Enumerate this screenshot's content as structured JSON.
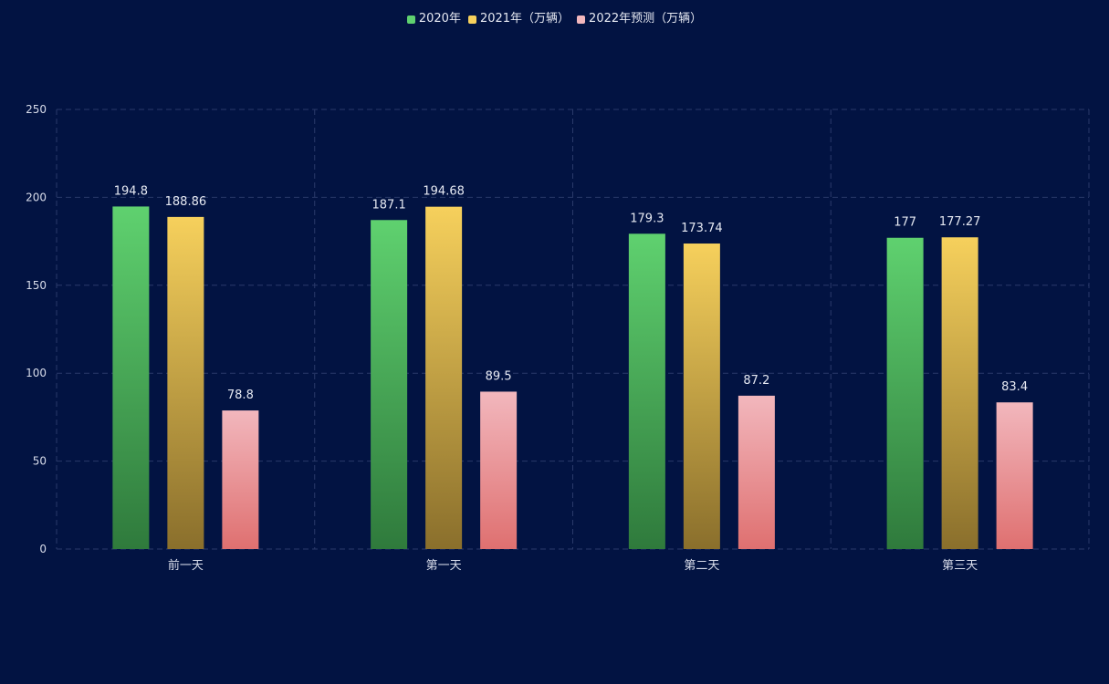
{
  "chart_data": {
    "type": "bar",
    "title": "",
    "xlabel": "",
    "ylabel": "",
    "ylim": [
      0,
      250
    ],
    "yticks": [
      0,
      50,
      100,
      150,
      200,
      250
    ],
    "grid": true,
    "legend_position": "top-center",
    "categories": [
      "前一天",
      "第一天",
      "第二天",
      "第三天"
    ],
    "series": [
      {
        "name": "2020年",
        "values": [
          194.8,
          187.1,
          179.3,
          177
        ],
        "labels": [
          "194.8",
          "187.1",
          "179.3",
          "177"
        ],
        "color_top": "#5fd16f",
        "color_bottom": "#2f7a3c"
      },
      {
        "name": "2021年（万辆）",
        "values": [
          188.86,
          194.68,
          173.74,
          177.27
        ],
        "labels": [
          "188.86",
          "194.68",
          "173.74",
          "177.27"
        ],
        "color_top": "#f6d05c",
        "color_bottom": "#8a6f2c"
      },
      {
        "name": "2022年预测（万辆）",
        "values": [
          78.8,
          89.5,
          87.2,
          83.4
        ],
        "labels": [
          "78.8",
          "89.5",
          "87.2",
          "83.4"
        ],
        "color_top": "#f2b7bd",
        "color_bottom": "#df7070"
      }
    ]
  },
  "colors": {
    "background": "#021342",
    "grid": "#2a3a6a",
    "text": "#e6e9f2",
    "axis_text": "#d8dcea"
  }
}
